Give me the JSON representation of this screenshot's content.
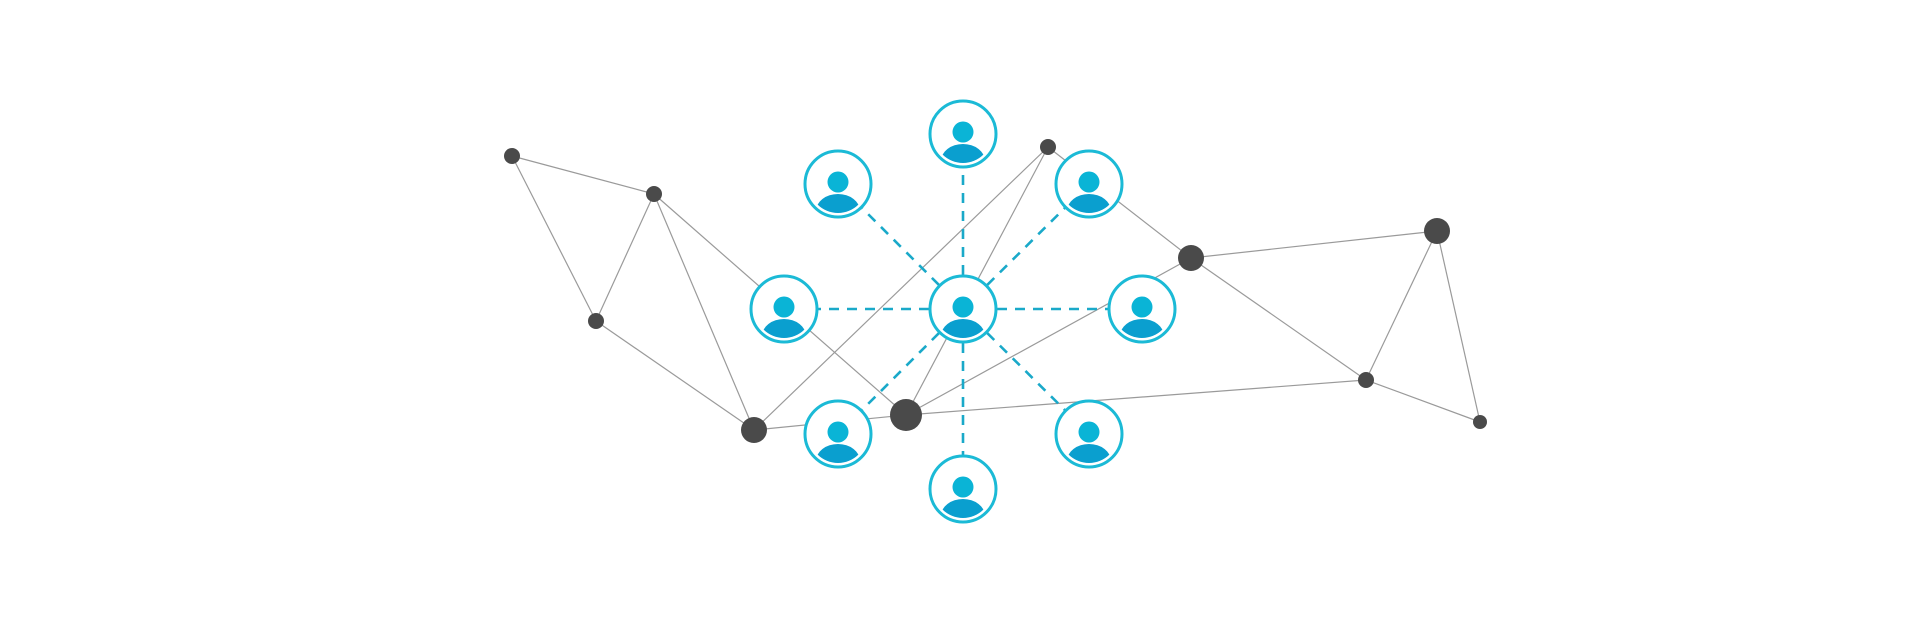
{
  "colors": {
    "background": "#ffffff",
    "network_node": "#4a4a4a",
    "network_edge": "#9a9a9a",
    "person_ring": "#1bbad6",
    "person_fill": "#0ab4d6",
    "person_fill_dark": "#0a9fcf",
    "dashed_link": "#1aa9c9"
  },
  "icons": {
    "person": "user-avatar-icon",
    "node": "network-node-dot"
  },
  "diagram": {
    "type": "network",
    "center_person": "center-user",
    "person_count": 9,
    "network_node_count": 11,
    "network_edge_count": 17,
    "dashed_link_style": "dashed"
  }
}
